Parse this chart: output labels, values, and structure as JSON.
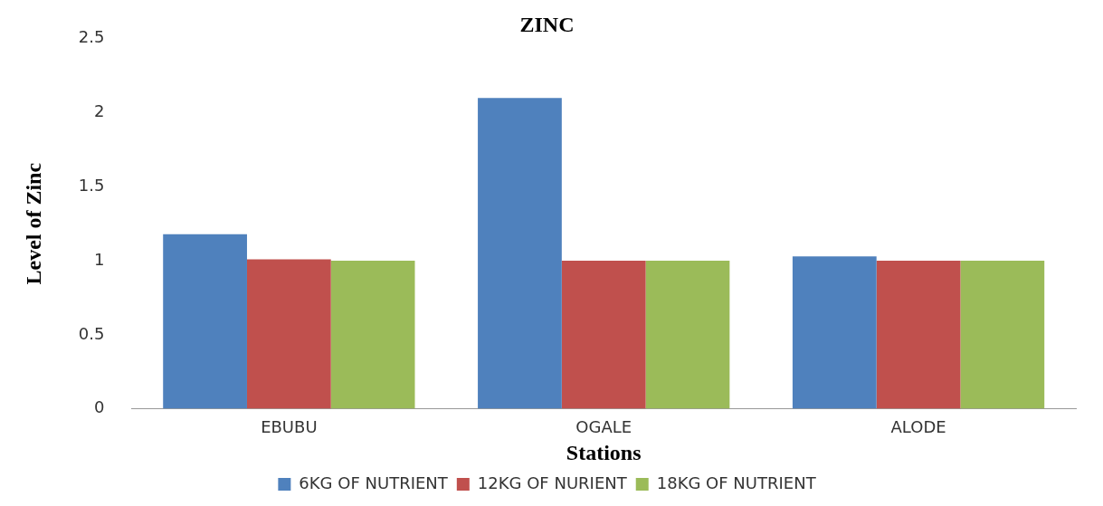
{
  "chart_data": {
    "type": "bar",
    "title": "ZINC",
    "xlabel": "Stations",
    "ylabel": "Level of Zinc",
    "categories": [
      "EBUBU",
      "OGALE",
      "ALODE"
    ],
    "series": [
      {
        "name": "6KG OF NUTRIENT",
        "color": "#4f81bd",
        "values": [
          1.18,
          2.1,
          1.03
        ]
      },
      {
        "name": "12KG OF NURIENT",
        "color": "#c0504d",
        "values": [
          1.01,
          1.0,
          1.0
        ]
      },
      {
        "name": "18KG OF NUTRIENT",
        "color": "#9bbb59",
        "values": [
          1.0,
          1.0,
          1.0
        ]
      }
    ],
    "ylim": [
      0,
      2.5
    ],
    "yticks": [
      0,
      0.5,
      1,
      1.5,
      2,
      2.5
    ],
    "grid": false,
    "legend": "bottom"
  }
}
